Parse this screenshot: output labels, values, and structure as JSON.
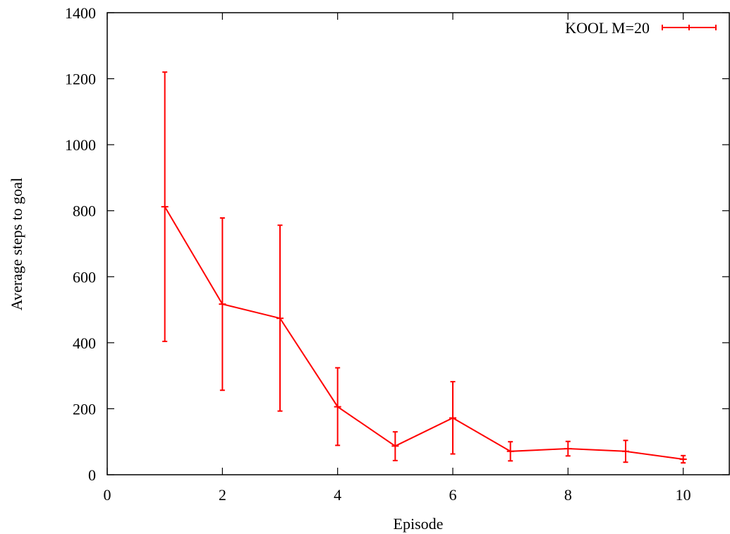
{
  "chart_data": {
    "type": "line",
    "title": "",
    "xlabel": "Episode",
    "ylabel": "Average steps to goal",
    "xlim": [
      0,
      10.8
    ],
    "ylim": [
      0,
      1400
    ],
    "xticks": [
      0,
      2,
      4,
      6,
      8,
      10
    ],
    "yticks": [
      0,
      200,
      400,
      600,
      800,
      1000,
      1200,
      1400
    ],
    "grid": false,
    "legend_position": "top-right",
    "series": [
      {
        "name": "KOOL M=20",
        "color": "#ff0000",
        "x": [
          1,
          2,
          3,
          4,
          5,
          6,
          7,
          8,
          9,
          10
        ],
        "y": [
          812,
          517,
          474,
          206,
          87,
          172,
          71,
          79,
          71,
          47
        ],
        "error_low": [
          404,
          256,
          193,
          89,
          43,
          63,
          42,
          57,
          38,
          36
        ],
        "error_high": [
          1220,
          778,
          756,
          324,
          130,
          282,
          100,
          101,
          104,
          58
        ]
      }
    ]
  }
}
